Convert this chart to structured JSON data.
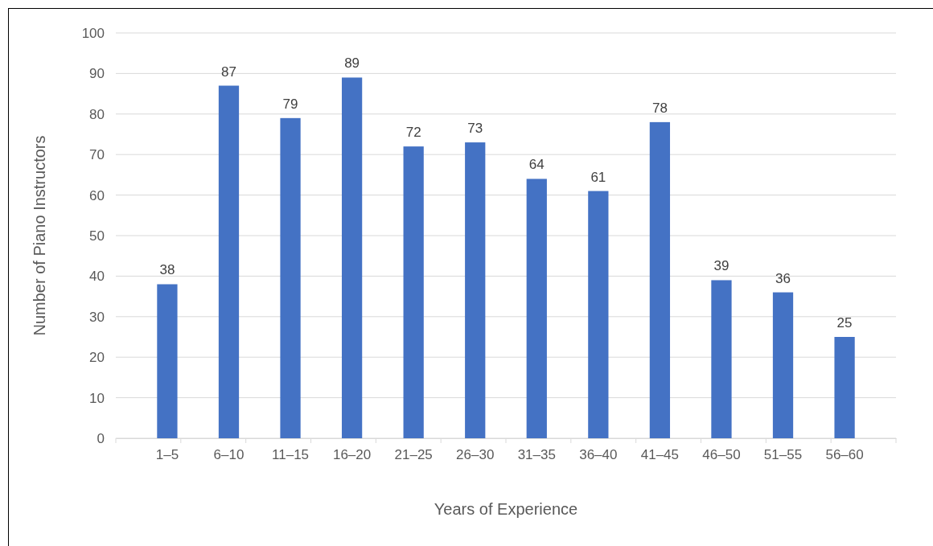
{
  "chart_data": {
    "type": "bar",
    "xlabel": "Years of Experience",
    "ylabel": "Number of Piano Instructors",
    "categories": [
      "1–5",
      "6–10",
      "11–15",
      "16–20",
      "21–25",
      "26–30",
      "31–35",
      "36–40",
      "41–45",
      "46–50",
      "51–55",
      "56–60"
    ],
    "values": [
      38,
      87,
      79,
      89,
      72,
      73,
      64,
      61,
      78,
      39,
      36,
      25
    ],
    "color": "#4472c4",
    "ylim": [
      0,
      100
    ],
    "yticks": [
      0,
      10,
      20,
      30,
      40,
      50,
      60,
      70,
      80,
      90,
      100
    ],
    "grid": "y",
    "data_labels": true
  }
}
